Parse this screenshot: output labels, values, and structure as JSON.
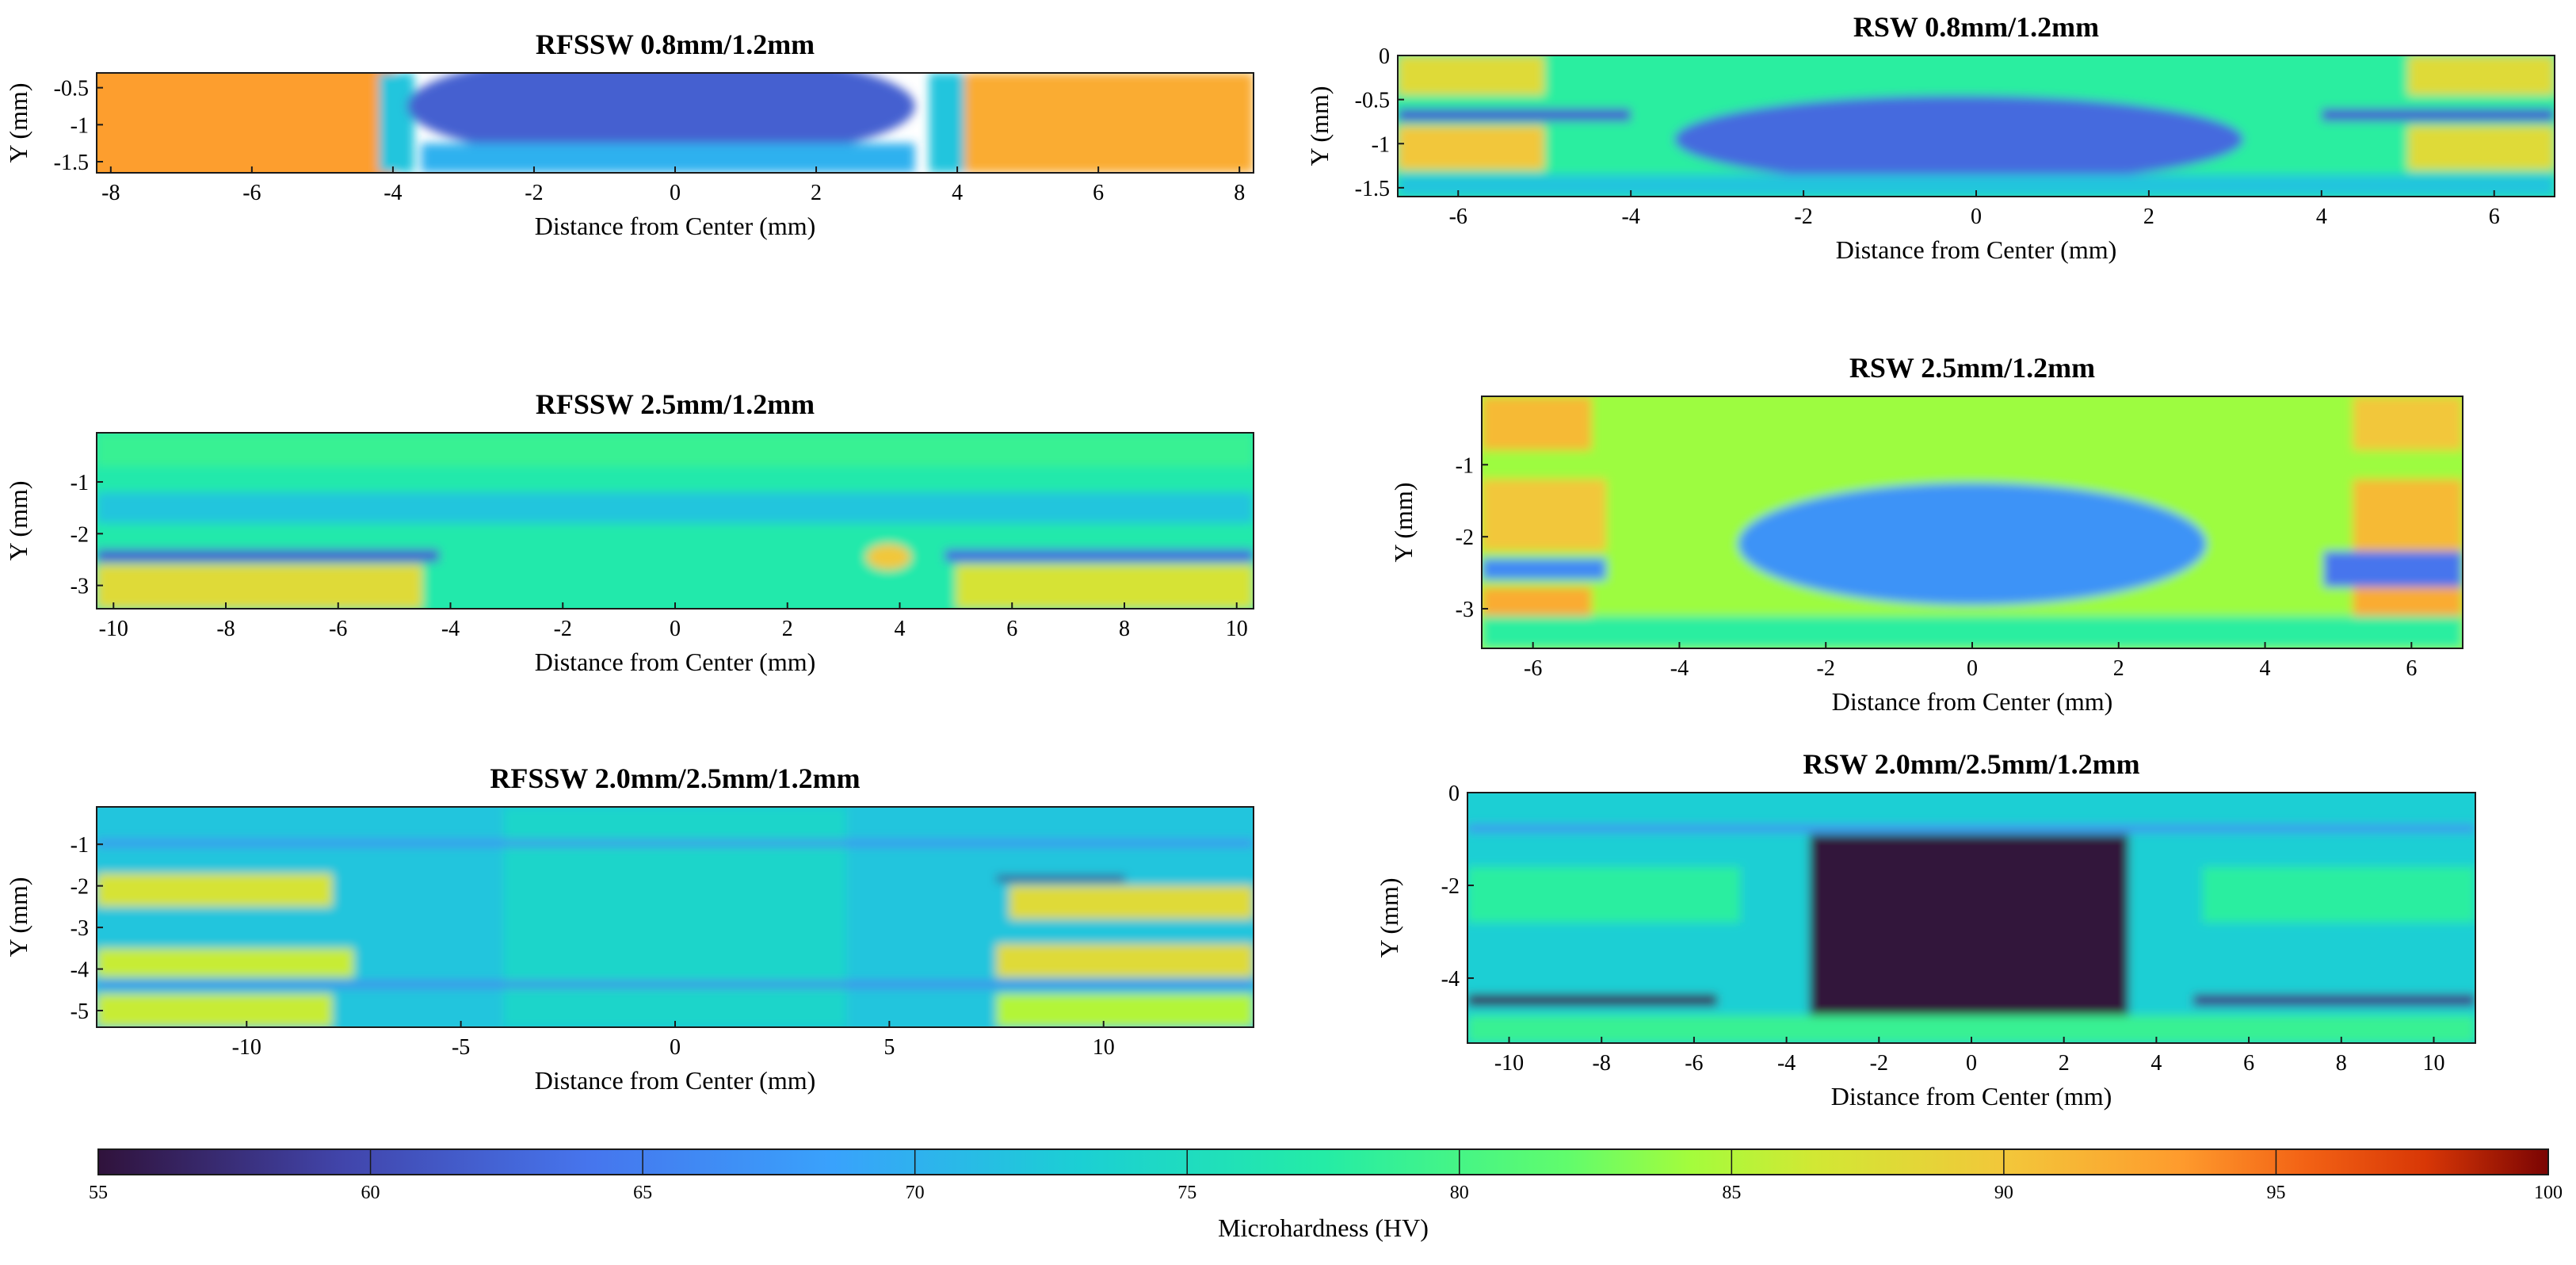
{
  "chart_data": {
    "type": "heatmap",
    "colorbar": {
      "label": "Microhardness (HV)",
      "min": 55,
      "max": 100,
      "ticks": [
        "55",
        "60",
        "65",
        "70",
        "75",
        "80",
        "85",
        "90",
        "95",
        "100"
      ],
      "colormap": "turbo"
    },
    "panels": [
      {
        "id": "p1",
        "title": "RFSSW 0.8mm/1.2mm",
        "xlabel": "Distance from Center (mm)",
        "ylabel": "Y (mm)",
        "xlim": [
          -8.2,
          8.2
        ],
        "ylim": [
          -1.65,
          -0.3
        ],
        "xticks": [
          {
            "v": -8,
            "t": "-8"
          },
          {
            "v": -6,
            "t": "-6"
          },
          {
            "v": -4,
            "t": "-4"
          },
          {
            "v": -2,
            "t": "-2"
          },
          {
            "v": 0,
            "t": "0"
          },
          {
            "v": 2,
            "t": "2"
          },
          {
            "v": 4,
            "t": "4"
          },
          {
            "v": 6,
            "t": "6"
          },
          {
            "v": 8,
            "t": "8"
          }
        ],
        "yticks": [
          {
            "v": -0.5,
            "t": "-0.5"
          },
          {
            "v": -1,
            "t": "-1"
          },
          {
            "v": -1.5,
            "t": "-1.5"
          }
        ],
        "features": [
          {
            "kind": "rect",
            "x": [
              -8.2,
              -4.2
            ],
            "y": [
              -1.65,
              -0.3
            ],
            "hv": 93
          },
          {
            "kind": "rect",
            "x": [
              4.1,
              8.2
            ],
            "y": [
              -1.65,
              -0.3
            ],
            "hv": 92
          },
          {
            "kind": "rect",
            "x": [
              -4.2,
              -3.7
            ],
            "y": [
              -1.65,
              -0.3
            ],
            "hv": 72
          },
          {
            "kind": "rect",
            "x": [
              3.6,
              4.1
            ],
            "y": [
              -1.65,
              -0.3
            ],
            "hv": 72
          },
          {
            "kind": "ellipse",
            "cx": -0.2,
            "cy": -0.75,
            "rx": 3.6,
            "ry": 0.75,
            "hv": 62
          },
          {
            "kind": "rect",
            "x": [
              -3.6,
              3.4
            ],
            "y": [
              -1.65,
              -1.25
            ],
            "hv": 70
          }
        ]
      },
      {
        "id": "p2",
        "title": "RFSSW 2.5mm/1.2mm",
        "xlabel": "Distance from Center (mm)",
        "ylabel": "Y (mm)",
        "xlim": [
          -10.3,
          10.3
        ],
        "ylim": [
          -3.45,
          -0.05
        ],
        "xticks": [
          {
            "v": -10,
            "t": "-10"
          },
          {
            "v": -8,
            "t": "-8"
          },
          {
            "v": -6,
            "t": "-6"
          },
          {
            "v": -4,
            "t": "-4"
          },
          {
            "v": -2,
            "t": "-2"
          },
          {
            "v": 0,
            "t": "0"
          },
          {
            "v": 2,
            "t": "2"
          },
          {
            "v": 4,
            "t": "4"
          },
          {
            "v": 6,
            "t": "6"
          },
          {
            "v": 8,
            "t": "8"
          },
          {
            "v": 10,
            "t": "10"
          }
        ],
        "yticks": [
          {
            "v": -1,
            "t": "-1"
          },
          {
            "v": -2,
            "t": "-2"
          },
          {
            "v": -3,
            "t": "-3"
          }
        ],
        "features": [
          {
            "kind": "rect",
            "x": [
              -10.3,
              10.3
            ],
            "y": [
              -3.45,
              -0.05
            ],
            "hv": 77
          },
          {
            "kind": "rect",
            "x": [
              -10.3,
              -4.5
            ],
            "y": [
              -3.45,
              -2.6
            ],
            "hv": 88
          },
          {
            "kind": "rect",
            "x": [
              5,
              10.3
            ],
            "y": [
              -3.45,
              -2.6
            ],
            "hv": 87
          },
          {
            "kind": "rect",
            "x": [
              -10.3,
              10.3
            ],
            "y": [
              -0.7,
              -0.05
            ],
            "hv": 79
          },
          {
            "kind": "rect",
            "x": [
              -10.3,
              -4.2
            ],
            "y": [
              -2.55,
              -2.3
            ],
            "hv": 62
          },
          {
            "kind": "rect",
            "x": [
              4.8,
              10.3
            ],
            "y": [
              -2.55,
              -2.3
            ],
            "hv": 63
          },
          {
            "kind": "ellipse",
            "cx": 3.8,
            "cy": -2.45,
            "rx": 0.4,
            "ry": 0.25,
            "hv": 90
          },
          {
            "kind": "rect",
            "x": [
              -10.3,
              10.3
            ],
            "y": [
              -1.8,
              -1.2
            ],
            "hv": 72
          }
        ]
      },
      {
        "id": "p3",
        "title": "RFSSW 2.0mm/2.5mm/1.2mm",
        "xlabel": "Distance from Center (mm)",
        "ylabel": "Y (mm)",
        "xlim": [
          -13.5,
          13.5
        ],
        "ylim": [
          -5.4,
          -0.1
        ],
        "xticks": [
          {
            "v": -10,
            "t": "-10"
          },
          {
            "v": -5,
            "t": "-5"
          },
          {
            "v": 0,
            "t": "0"
          },
          {
            "v": 5,
            "t": "5"
          },
          {
            "v": 10,
            "t": "10"
          }
        ],
        "yticks": [
          {
            "v": -1,
            "t": "-1"
          },
          {
            "v": -2,
            "t": "-2"
          },
          {
            "v": -3,
            "t": "-3"
          },
          {
            "v": -4,
            "t": "-4"
          },
          {
            "v": -5,
            "t": "-5"
          }
        ],
        "features": [
          {
            "kind": "rect",
            "x": [
              -13.5,
              13.5
            ],
            "y": [
              -5.4,
              -0.1
            ],
            "hv": 72
          },
          {
            "kind": "rect",
            "x": [
              -4,
              4
            ],
            "y": [
              -5.4,
              -0.1
            ],
            "hv": 74
          },
          {
            "kind": "rect",
            "x": [
              -13.5,
              -8
            ],
            "y": [
              -2.5,
              -1.7
            ],
            "hv": 87
          },
          {
            "kind": "rect",
            "x": [
              -13.5,
              -7.5
            ],
            "y": [
              -4.2,
              -3.5
            ],
            "hv": 86
          },
          {
            "kind": "rect",
            "x": [
              -13.5,
              -8
            ],
            "y": [
              -5.4,
              -4.6
            ],
            "hv": 86
          },
          {
            "kind": "rect",
            "x": [
              7.8,
              13.5
            ],
            "y": [
              -2.8,
              -2
            ],
            "hv": 88
          },
          {
            "kind": "rect",
            "x": [
              7.5,
              13.5
            ],
            "y": [
              -4.2,
              -3.4
            ],
            "hv": 88
          },
          {
            "kind": "rect",
            "x": [
              7.5,
              13.5
            ],
            "y": [
              -5.4,
              -4.6
            ],
            "hv": 85
          },
          {
            "kind": "rect",
            "x": [
              -13.5,
              13.5
            ],
            "y": [
              -4.45,
              -4.3
            ],
            "hv": 65
          },
          {
            "kind": "rect",
            "x": [
              7.5,
              10.5
            ],
            "y": [
              -1.9,
              -1.75
            ],
            "hv": 58
          },
          {
            "kind": "rect",
            "x": [
              -13.5,
              13.5
            ],
            "y": [
              -1.05,
              -0.9
            ],
            "hv": 66
          }
        ]
      },
      {
        "id": "p4",
        "title": "RSW 0.8mm/1.2mm",
        "xlabel": "Distance from Center (mm)",
        "ylabel": "Y (mm)",
        "xlim": [
          -6.7,
          6.7
        ],
        "ylim": [
          -1.6,
          0
        ],
        "xticks": [
          {
            "v": -6,
            "t": "-6"
          },
          {
            "v": -4,
            "t": "-4"
          },
          {
            "v": -2,
            "t": "-2"
          },
          {
            "v": 0,
            "t": "0"
          },
          {
            "v": 2,
            "t": "2"
          },
          {
            "v": 4,
            "t": "4"
          },
          {
            "v": 6,
            "t": "6"
          }
        ],
        "yticks": [
          {
            "v": 0,
            "t": "0"
          },
          {
            "v": -0.5,
            "t": "-0.5"
          },
          {
            "v": -1,
            "t": "-1"
          },
          {
            "v": -1.5,
            "t": "-1.5"
          }
        ],
        "features": [
          {
            "kind": "rect",
            "x": [
              -6.7,
              6.7
            ],
            "y": [
              -1.6,
              0
            ],
            "hv": 78
          },
          {
            "kind": "rect",
            "x": [
              -6.7,
              -5
            ],
            "y": [
              -0.45,
              0
            ],
            "hv": 88
          },
          {
            "kind": "rect",
            "x": [
              -6.7,
              -5
            ],
            "y": [
              -1.3,
              -0.8
            ],
            "hv": 90
          },
          {
            "kind": "rect",
            "x": [
              5,
              6.7
            ],
            "y": [
              -0.45,
              0
            ],
            "hv": 88
          },
          {
            "kind": "rect",
            "x": [
              5,
              6.7
            ],
            "y": [
              -1.3,
              -0.8
            ],
            "hv": 88
          },
          {
            "kind": "rect",
            "x": [
              -6.7,
              -4
            ],
            "y": [
              -0.75,
              -0.6
            ],
            "hv": 62
          },
          {
            "kind": "rect",
            "x": [
              4,
              6.7
            ],
            "y": [
              -0.75,
              -0.6
            ],
            "hv": 62
          },
          {
            "kind": "ellipse",
            "cx": -0.2,
            "cy": -0.95,
            "rx": 3.3,
            "ry": 0.5,
            "hv": 63
          },
          {
            "kind": "rect",
            "x": [
              -6.7,
              6.7
            ],
            "y": [
              -1.6,
              -1.35
            ],
            "hv": 72
          }
        ]
      },
      {
        "id": "p5",
        "title": "RSW 2.5mm/1.2mm",
        "xlabel": "Distance from Center (mm)",
        "ylabel": "Y (mm)",
        "xlim": [
          -6.7,
          6.7
        ],
        "ylim": [
          -3.55,
          -0.05
        ],
        "xticks": [
          {
            "v": -6,
            "t": "-6"
          },
          {
            "v": -4,
            "t": "-4"
          },
          {
            "v": -2,
            "t": "-2"
          },
          {
            "v": 0,
            "t": "0"
          },
          {
            "v": 2,
            "t": "2"
          },
          {
            "v": 4,
            "t": "4"
          },
          {
            "v": 6,
            "t": "6"
          }
        ],
        "yticks": [
          {
            "v": -1,
            "t": "-1"
          },
          {
            "v": -2,
            "t": "-2"
          },
          {
            "v": -3,
            "t": "-3"
          }
        ],
        "features": [
          {
            "kind": "rect",
            "x": [
              -6.7,
              6.7
            ],
            "y": [
              -3.55,
              -0.05
            ],
            "hv": 84
          },
          {
            "kind": "rect",
            "x": [
              -6.7,
              -5.2
            ],
            "y": [
              -0.8,
              -0.05
            ],
            "hv": 91
          },
          {
            "kind": "rect",
            "x": [
              -6.7,
              -5
            ],
            "y": [
              -2.2,
              -1.2
            ],
            "hv": 90
          },
          {
            "kind": "rect",
            "x": [
              -6.7,
              -5.2
            ],
            "y": [
              -3.55,
              -2.7
            ],
            "hv": 92
          },
          {
            "kind": "rect",
            "x": [
              5.2,
              6.7
            ],
            "y": [
              -0.8,
              -0.05
            ],
            "hv": 90
          },
          {
            "kind": "rect",
            "x": [
              5.2,
              6.7
            ],
            "y": [
              -2.2,
              -1.2
            ],
            "hv": 91
          },
          {
            "kind": "rect",
            "x": [
              5.2,
              6.7
            ],
            "y": [
              -3.55,
              -2.7
            ],
            "hv": 92
          },
          {
            "kind": "rect",
            "x": [
              -6.7,
              -5
            ],
            "y": [
              -2.6,
              -2.3
            ],
            "hv": 66
          },
          {
            "kind": "rect",
            "x": [
              4.8,
              6.7
            ],
            "y": [
              -2.7,
              -2.2
            ],
            "hv": 64
          },
          {
            "kind": "ellipse",
            "cx": 0,
            "cy": -2.1,
            "rx": 3.2,
            "ry": 0.85,
            "hv": 67
          },
          {
            "kind": "rect",
            "x": [
              -6.7,
              6.7
            ],
            "y": [
              -3.55,
              -3.1
            ],
            "hv": 78
          }
        ]
      },
      {
        "id": "p6",
        "title": "RSW 2.0mm/2.5mm/1.2mm",
        "xlabel": "Distance from Center (mm)",
        "ylabel": "Y (mm)",
        "xlim": [
          -10.9,
          10.9
        ],
        "ylim": [
          -5.4,
          0
        ],
        "xticks": [
          {
            "v": -10,
            "t": "-10"
          },
          {
            "v": -8,
            "t": "-8"
          },
          {
            "v": -6,
            "t": "-6"
          },
          {
            "v": -4,
            "t": "-4"
          },
          {
            "v": -2,
            "t": "-2"
          },
          {
            "v": 0,
            "t": "0"
          },
          {
            "v": 2,
            "t": "2"
          },
          {
            "v": 4,
            "t": "4"
          },
          {
            "v": 6,
            "t": "6"
          },
          {
            "v": 8,
            "t": "8"
          },
          {
            "v": 10,
            "t": "10"
          }
        ],
        "yticks": [
          {
            "v": 0,
            "t": "0"
          },
          {
            "v": -2,
            "t": "-2"
          },
          {
            "v": -4,
            "t": "-4"
          }
        ],
        "features": [
          {
            "kind": "rect",
            "x": [
              -10.9,
              10.9
            ],
            "y": [
              -5.4,
              0
            ],
            "hv": 73
          },
          {
            "kind": "rect",
            "x": [
              -10.9,
              -5
            ],
            "y": [
              -2.8,
              -1.6
            ],
            "hv": 78
          },
          {
            "kind": "rect",
            "x": [
              5,
              10.9
            ],
            "y": [
              -2.8,
              -1.6
            ],
            "hv": 78
          },
          {
            "kind": "rect",
            "x": [
              -10.9,
              10.9
            ],
            "y": [
              -5.4,
              -4.8
            ],
            "hv": 79
          },
          {
            "kind": "rect",
            "x": [
              -10.9,
              -5.5
            ],
            "y": [
              -4.6,
              -4.35
            ],
            "hv": 56
          },
          {
            "kind": "rect",
            "x": [
              4.8,
              10.9
            ],
            "y": [
              -4.6,
              -4.35
            ],
            "hv": 58
          },
          {
            "kind": "rect",
            "x": [
              -3.5,
              3.4
            ],
            "y": [
              -4.8,
              -0.9
            ],
            "hv": 55
          },
          {
            "kind": "rect",
            "x": [
              -10.9,
              10.9
            ],
            "y": [
              -0.85,
              -0.7
            ],
            "hv": 66
          }
        ]
      }
    ]
  }
}
